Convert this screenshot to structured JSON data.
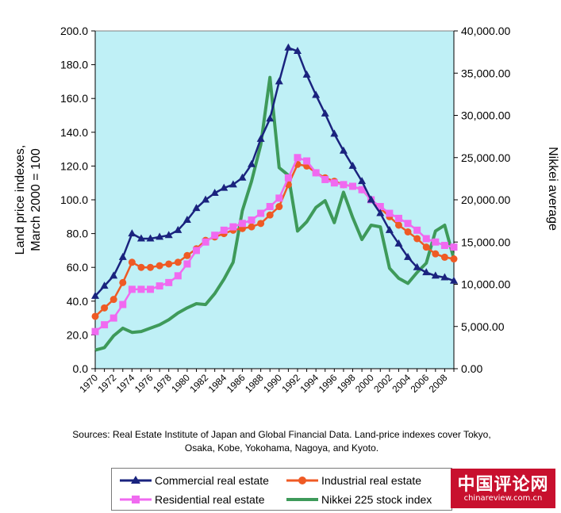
{
  "chart_data": {
    "type": "line",
    "left_axis": {
      "label_lines": [
        "Land price indexes,",
        "March 2000 = 100"
      ],
      "min": 0,
      "max": 200,
      "step": 20,
      "tick_labels": [
        "0.0",
        "20.0",
        "40.0",
        "60.0",
        "80.0",
        "100.0",
        "120.0",
        "140.0",
        "160.0",
        "180.0",
        "200.0"
      ]
    },
    "right_axis": {
      "label": "Nikkei average",
      "min": 0,
      "max": 40000,
      "step": 5000,
      "tick_labels": [
        "0.00",
        "5,000.00",
        "10,000.00",
        "15,000.00",
        "20,000.00",
        "25,000.00",
        "30,000.00",
        "35,000.00",
        "40,000.00"
      ]
    },
    "x_tick_labels": [
      "1970",
      "1972",
      "1974",
      "1976",
      "1978",
      "1980",
      "1982",
      "1984",
      "1986",
      "1988",
      "1990",
      "1992",
      "1994",
      "1996",
      "1998",
      "2000",
      "2002",
      "2004",
      "2006",
      "2008"
    ],
    "x": [
      1970,
      1971,
      1972,
      1973,
      1974,
      1975,
      1976,
      1977,
      1978,
      1979,
      1980,
      1981,
      1982,
      1983,
      1984,
      1985,
      1986,
      1987,
      1988,
      1989,
      1990,
      1991,
      1992,
      1993,
      1994,
      1995,
      1996,
      1997,
      1998,
      1999,
      2000,
      2001,
      2002,
      2003,
      2004,
      2005,
      2006,
      2007,
      2008,
      2009
    ],
    "plot_background": "#bff0f6",
    "series": [
      {
        "name": "Commercial real estate",
        "axis": "left",
        "color": "#1a237e",
        "marker": "triangle",
        "values": [
          43,
          49,
          55,
          66,
          80,
          77,
          77,
          78,
          79,
          82,
          88,
          95,
          100,
          104,
          107,
          109,
          113,
          121,
          136,
          148,
          170,
          190,
          188,
          174,
          162,
          151,
          139,
          129,
          120,
          111,
          100,
          92,
          82,
          74,
          66,
          60,
          57,
          55,
          54,
          52
        ]
      },
      {
        "name": "Industrial real estate",
        "axis": "left",
        "color": "#ef5a24",
        "marker": "circle",
        "values": [
          31,
          36,
          41,
          51,
          63,
          60,
          60,
          61,
          62,
          63,
          67,
          71,
          76,
          78,
          80,
          82,
          83,
          84,
          86,
          91,
          96,
          109,
          121,
          120,
          116,
          113,
          111,
          109,
          108,
          106,
          100,
          95,
          90,
          85,
          81,
          77,
          72,
          68,
          66,
          65
        ]
      },
      {
        "name": "Residential real estate",
        "axis": "left",
        "color": "#f06af0",
        "marker": "square",
        "values": [
          22,
          26,
          30,
          38,
          47,
          47,
          47,
          49,
          51,
          55,
          62,
          70,
          75,
          79,
          82,
          84,
          86,
          88,
          92,
          96,
          101,
          113,
          125,
          123,
          116,
          112,
          110,
          109,
          108,
          106,
          100,
          96,
          92,
          89,
          86,
          82,
          77,
          75,
          73,
          72
        ]
      },
      {
        "name": "Nikkei 225 stock index",
        "axis": "right",
        "color": "#3e9a5a",
        "marker": "none",
        "values": [
          2200,
          2500,
          3900,
          4800,
          4300,
          4400,
          4800,
          5200,
          5800,
          6600,
          7200,
          7700,
          7600,
          8900,
          10600,
          12600,
          18700,
          22200,
          26500,
          34500,
          23800,
          22900,
          16300,
          17400,
          19100,
          19900,
          17300,
          20900,
          17900,
          15300,
          17000,
          16800,
          11900,
          10700,
          10100,
          11400,
          12500,
          16300,
          17000,
          13000
        ]
      }
    ],
    "source": [
      "Sources: Real Estate Institute of Japan and Global Financial Data. Land-price indexes cover Tokyo,",
      "Osaka, Kobe, Yokohama, Nagoya, and Kyoto."
    ]
  },
  "legend": [
    "Commercial real estate",
    "Industrial real estate",
    "Residential real estate",
    "Nikkei 225 stock index"
  ],
  "watermark": {
    "title": "中国评论网",
    "url": "chinareview.com.cn"
  }
}
